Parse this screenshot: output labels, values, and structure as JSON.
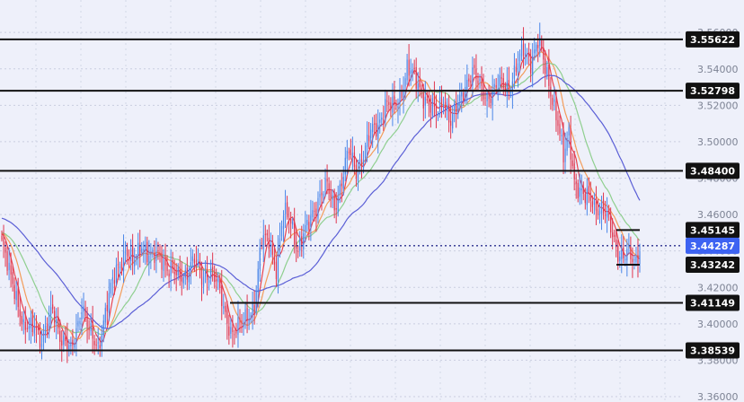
{
  "chart_data": {
    "type": "candlestick",
    "title": "",
    "xlabel": "",
    "ylabel": "",
    "ylim": [
      3.36,
      3.566
    ],
    "grid": true,
    "y_ticks": [
      {
        "value": 3.56,
        "label": "3.56000"
      },
      {
        "value": 3.54,
        "label": "3.54000"
      },
      {
        "value": 3.52,
        "label": "3.52000"
      },
      {
        "value": 3.5,
        "label": "3.50000"
      },
      {
        "value": 3.48,
        "label": "3.48000"
      },
      {
        "value": 3.46,
        "label": "3.46000"
      },
      {
        "value": 3.44,
        "label": "3.44000"
      },
      {
        "value": 3.42,
        "label": "3.42000"
      },
      {
        "value": 3.4,
        "label": "3.40000"
      },
      {
        "value": 3.38,
        "label": "3.38000"
      },
      {
        "value": 3.36,
        "label": "3.36000"
      }
    ],
    "levels": [
      {
        "value": 3.55622,
        "label": "3.55622"
      },
      {
        "value": 3.52798,
        "label": "3.52798"
      },
      {
        "value": 3.484,
        "label": "3.48400"
      },
      {
        "value": 3.45145,
        "label": "3.45145"
      },
      {
        "value": 3.43242,
        "label": "3.43242"
      },
      {
        "value": 3.41149,
        "label": "3.41149"
      },
      {
        "value": 3.38539,
        "label": "3.38539"
      }
    ],
    "current_price": {
      "value": 3.44287,
      "label": "3.44287"
    },
    "colors": {
      "up": "#4a86e8",
      "down": "#e0364f",
      "ma_fast": "#e8434f",
      "ma_mid": "#f39c5a",
      "ma_slow": "#8fcf8f",
      "ma_long": "#5b5fd6",
      "level_line": "#111111",
      "level_label_bg": "#111111",
      "current_label_bg": "#3d63f2"
    },
    "anchors": [
      [
        0,
        3.442
      ],
      [
        6,
        3.425
      ],
      [
        12,
        3.395
      ],
      [
        18,
        3.402
      ],
      [
        22,
        3.388
      ],
      [
        28,
        3.41
      ],
      [
        33,
        3.39
      ],
      [
        38,
        3.385
      ],
      [
        44,
        3.41
      ],
      [
        48,
        3.395
      ],
      [
        53,
        3.388
      ],
      [
        58,
        3.41
      ],
      [
        63,
        3.43
      ],
      [
        68,
        3.44
      ],
      [
        72,
        3.432
      ],
      [
        77,
        3.445
      ],
      [
        82,
        3.435
      ],
      [
        87,
        3.438
      ],
      [
        92,
        3.43
      ],
      [
        97,
        3.425
      ],
      [
        101,
        3.428
      ],
      [
        106,
        3.435
      ],
      [
        110,
        3.425
      ],
      [
        115,
        3.43
      ],
      [
        119,
        3.42
      ],
      [
        123,
        3.405
      ],
      [
        127,
        3.395
      ],
      [
        131,
        3.398
      ],
      [
        135,
        3.405
      ],
      [
        139,
        3.41
      ],
      [
        143,
        3.445
      ],
      [
        147,
        3.448
      ],
      [
        151,
        3.43
      ],
      [
        155,
        3.46
      ],
      [
        159,
        3.458
      ],
      [
        163,
        3.44
      ],
      [
        167,
        3.45
      ],
      [
        171,
        3.462
      ],
      [
        175,
        3.47
      ],
      [
        179,
        3.475
      ],
      [
        183,
        3.465
      ],
      [
        187,
        3.478
      ],
      [
        191,
        3.495
      ],
      [
        195,
        3.485
      ],
      [
        199,
        3.492
      ],
      [
        203,
        3.505
      ],
      [
        207,
        3.51
      ],
      [
        211,
        3.52
      ],
      [
        215,
        3.518
      ],
      [
        219,
        3.525
      ],
      [
        223,
        3.54
      ],
      [
        227,
        3.535
      ],
      [
        231,
        3.528
      ],
      [
        235,
        3.52
      ],
      [
        239,
        3.515
      ],
      [
        243,
        3.525
      ],
      [
        247,
        3.51
      ],
      [
        251,
        3.52
      ],
      [
        255,
        3.532
      ],
      [
        259,
        3.538
      ],
      [
        263,
        3.53
      ],
      [
        267,
        3.525
      ],
      [
        271,
        3.528
      ],
      [
        275,
        3.532
      ],
      [
        279,
        3.53
      ],
      [
        283,
        3.54
      ],
      [
        287,
        3.55
      ],
      [
        291,
        3.545
      ],
      [
        295,
        3.555
      ],
      [
        299,
        3.54
      ],
      [
        303,
        3.525
      ],
      [
        306,
        3.51
      ],
      [
        309,
        3.49
      ],
      [
        312,
        3.505
      ],
      [
        315,
        3.48
      ],
      [
        318,
        3.472
      ],
      [
        321,
        3.468
      ],
      [
        324,
        3.47
      ],
      [
        327,
        3.465
      ],
      [
        330,
        3.462
      ],
      [
        333,
        3.458
      ],
      [
        336,
        3.45
      ],
      [
        339,
        3.44
      ],
      [
        342,
        3.436
      ],
      [
        345,
        3.438
      ],
      [
        348,
        3.434
      ],
      [
        351,
        3.442
      ]
    ],
    "moving_averages": [
      {
        "key": "ma_fast",
        "period": 6
      },
      {
        "key": "ma_mid",
        "period": 12
      },
      {
        "key": "ma_slow",
        "period": 24
      },
      {
        "key": "ma_long",
        "period": 50
      }
    ]
  }
}
